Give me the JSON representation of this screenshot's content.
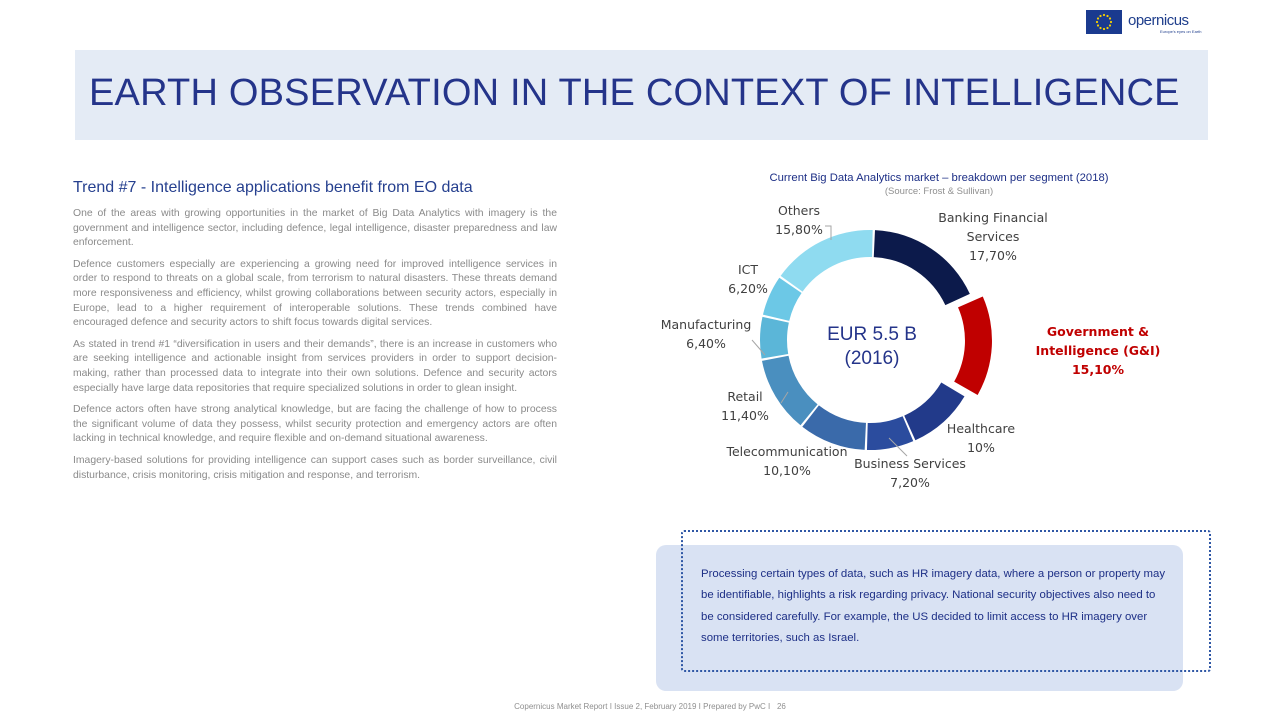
{
  "header": {
    "title": "EARTH OBSERVATION IN THE CONTEXT OF INTELLIGENCE",
    "logo_text": "opernicus",
    "logo_tagline": "Europe's eyes on Earth"
  },
  "left": {
    "trend_title": "Trend #7 - Intelligence applications benefit from EO data",
    "paragraphs": [
      "One of the areas with growing opportunities in the market of Big Data Analytics with imagery is the government and intelligence sector, including defence, legal intelligence, disaster preparedness and law enforcement.",
      "Defence customers especially are experiencing a growing need for improved intelligence services in order to respond to threats on a global scale, from terrorism to natural disasters. These threats demand more responsiveness and efficiency, whilst growing collaborations between security actors, especially in Europe, lead to a higher requirement of interoperable solutions. These trends combined have encouraged defence and security actors to shift focus towards digital services.",
      "As stated in trend #1 “diversification in users and their demands”, there is an increase in customers who are seeking intelligence and actionable insight from services providers in order to support decision-making, rather than processed data to integrate into their own solutions. Defence and security actors especially have large data repositories that require specialized solutions in order to glean insight.",
      "Defence actors often have strong analytical knowledge, but are facing the challenge of how to process the significant volume of data they possess, whilst security protection and emergency actors are often lacking in technical knowledge, and require flexible and on-demand situational awareness.",
      "Imagery-based solutions for providing intelligence can support cases such as border surveillance, civil disturbance, crisis monitoring, crisis mitigation and response, and terrorism."
    ]
  },
  "chart_data": {
    "type": "pie",
    "title": "Current Big Data Analytics market – breakdown per segment (2018)",
    "source": "(Source: Frost & Sullivan)",
    "center_label_lines": [
      "EUR 5.5 B",
      "(2016)"
    ],
    "slices": [
      {
        "label_lines": [
          "Banking Financial",
          "Services"
        ],
        "value_label": "17,70%",
        "value": 17.7,
        "color": "#0c1a4b"
      },
      {
        "label_lines": [
          "Government &",
          "Intelligence (G&I)"
        ],
        "value_label": "15,10%",
        "value": 15.1,
        "color": "#c00000",
        "highlight": true
      },
      {
        "label_lines": [
          "Healthcare"
        ],
        "value_label": "10%",
        "value": 10.0,
        "color": "#223a8a"
      },
      {
        "label_lines": [
          "Business Services"
        ],
        "value_label": "7,20%",
        "value": 7.2,
        "color": "#2b4c9e"
      },
      {
        "label_lines": [
          "Telecommunication"
        ],
        "value_label": "10,10%",
        "value": 10.1,
        "color": "#3a6aaa"
      },
      {
        "label_lines": [
          "Retail"
        ],
        "value_label": "11,40%",
        "value": 11.4,
        "color": "#4a8fbf"
      },
      {
        "label_lines": [
          "Manufacturing"
        ],
        "value_label": "6,40%",
        "value": 6.4,
        "color": "#5bb6d8"
      },
      {
        "label_lines": [
          "ICT"
        ],
        "value_label": "6,20%",
        "value": 6.2,
        "color": "#6cc8e6"
      },
      {
        "label_lines": [
          "Others"
        ],
        "value_label": "15,80%",
        "value": 15.8,
        "color": "#8fdbf0"
      }
    ],
    "label_color": "#404040",
    "highlight_label_color": "#c00000",
    "center_label_color": "#24348a"
  },
  "note": {
    "text": "Processing certain types of data, such as HR imagery data, where a person or property may be identifiable, highlights a risk regarding privacy. National security objectives also need to be considered carefully. For example, the US decided to limit access to HR imagery over some territories, such as Israel."
  },
  "footer": {
    "text": "Copernicus Market Report I Issue 2, February 2019 I Prepared by PwC I",
    "page_number": "26"
  }
}
